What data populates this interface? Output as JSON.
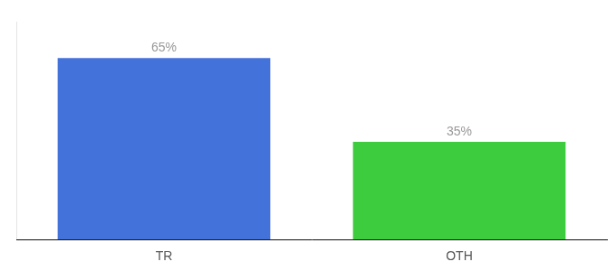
{
  "chart_data": {
    "type": "bar",
    "categories": [
      "TR",
      "OTH"
    ],
    "values": [
      65,
      35
    ],
    "value_labels": [
      "65%",
      "35%"
    ],
    "colors": [
      "#4472db",
      "#3dcc3d"
    ],
    "ylim": [
      0,
      78
    ],
    "grid": false,
    "data_labels": true,
    "tick_labels": "x"
  }
}
